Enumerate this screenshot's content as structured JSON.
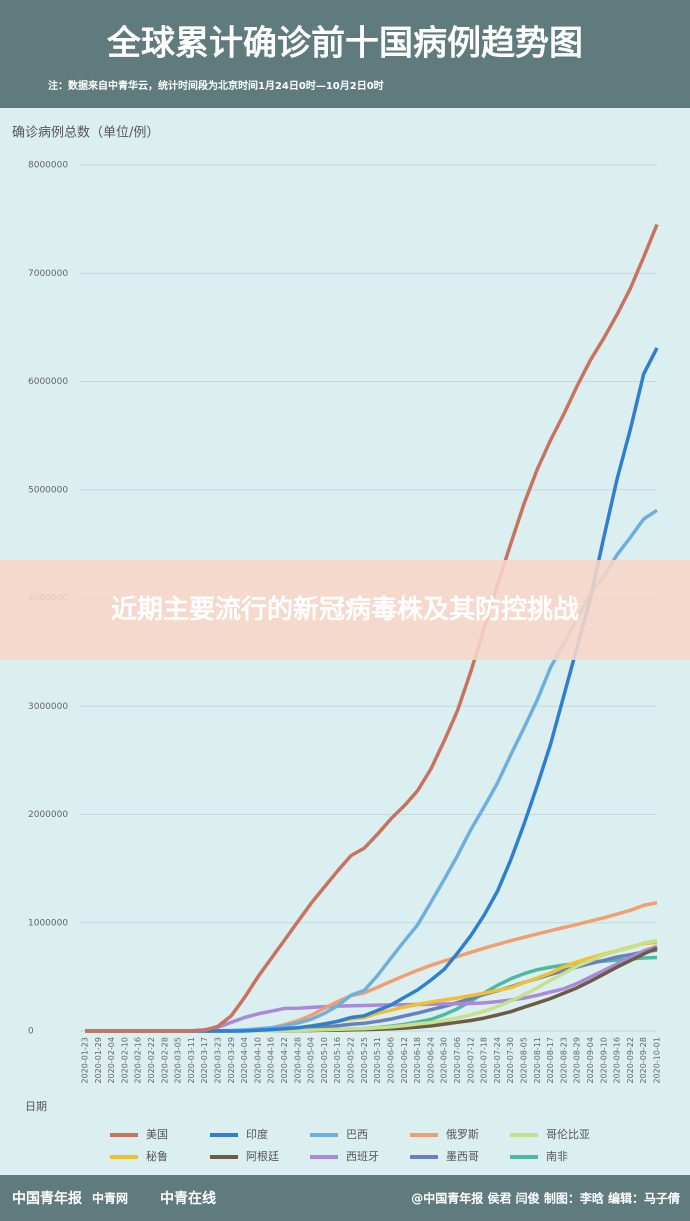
{
  "chart_data": {
    "type": "line",
    "title": "全球累计确诊前十国病例趋势图",
    "subtitle": "注：数据来自中青华云，统计时间段为北京时间1月24日0时—10月2日0时",
    "y_label": "确诊病例总数（单位/例）",
    "x_label": "日期",
    "ylim": [
      0,
      8000000
    ],
    "yticks": [
      0,
      1000000,
      2000000,
      3000000,
      4000000,
      5000000,
      6000000,
      7000000,
      8000000
    ],
    "grid": true,
    "categories": [
      "2020-01-23",
      "2020-01-29",
      "2020-02-04",
      "2020-02-10",
      "2020-02-16",
      "2020-02-22",
      "2020-02-28",
      "2020-03-05",
      "2020-03-11",
      "2020-03-17",
      "2020-03-23",
      "2020-03-29",
      "2020-04-04",
      "2020-04-10",
      "2020-04-16",
      "2020-04-22",
      "2020-04-28",
      "2020-05-04",
      "2020-05-10",
      "2020-05-16",
      "2020-05-22",
      "2020-05-25",
      "2020-05-31",
      "2020-06-06",
      "2020-06-12",
      "2020-06-18",
      "2020-06-24",
      "2020-06-30",
      "2020-07-06",
      "2020-07-12",
      "2020-07-18",
      "2020-07-24",
      "2020-07-30",
      "2020-08-05",
      "2020-08-11",
      "2020-08-17",
      "2020-08-23",
      "2020-08-29",
      "2020-09-04",
      "2020-09-10",
      "2020-09-16",
      "2020-09-22",
      "2020-09-28",
      "2020-10-01"
    ],
    "series": [
      {
        "name": "美国",
        "color": "#c8735e",
        "values": [
          0,
          0,
          0,
          0,
          0,
          0,
          0,
          200,
          1300,
          6400,
          43000,
          140000,
          310000,
          500000,
          670000,
          840000,
          1010000,
          1180000,
          1330000,
          1480000,
          1620000,
          1690000,
          1820000,
          1960000,
          2080000,
          2220000,
          2420000,
          2680000,
          2960000,
          3320000,
          3720000,
          4120000,
          4500000,
          4870000,
          5190000,
          5460000,
          5700000,
          5960000,
          6200000,
          6400000,
          6620000,
          6860000,
          7150000,
          7450000
        ]
      },
      {
        "name": "印度",
        "color": "#2f7fd0",
        "values": [
          0,
          0,
          0,
          0,
          0,
          0,
          0,
          0,
          0,
          0,
          0,
          0,
          0,
          7500,
          13000,
          20000,
          30000,
          45000,
          65000,
          90000,
          125000,
          140000,
          190000,
          240000,
          310000,
          380000,
          470000,
          570000,
          720000,
          880000,
          1070000,
          1290000,
          1580000,
          1910000,
          2270000,
          2650000,
          3100000,
          3550000,
          4000000,
          4560000,
          5100000,
          5560000,
          6070000,
          6310000
        ]
      },
      {
        "name": "巴西",
        "color": "#6db0e0",
        "values": [
          0,
          0,
          0,
          0,
          0,
          0,
          0,
          0,
          0,
          300,
          1900,
          4300,
          10000,
          19000,
          30000,
          46000,
          73000,
          108000,
          163000,
          234000,
          330000,
          375000,
          515000,
          673000,
          830000,
          980000,
          1190000,
          1400000,
          1620000,
          1860000,
          2070000,
          2290000,
          2550000,
          2800000,
          3060000,
          3360000,
          3580000,
          3810000,
          4040000,
          4200000,
          4400000,
          4560000,
          4730000,
          4810000
        ]
      },
      {
        "name": "俄罗斯",
        "color": "#f0a070",
        "values": [
          0,
          0,
          0,
          0,
          0,
          0,
          0,
          0,
          0,
          100,
          400,
          1500,
          4700,
          12000,
          27000,
          58000,
          94000,
          145000,
          210000,
          272000,
          326000,
          353000,
          405000,
          458000,
          511000,
          561000,
          607000,
          647000,
          687000,
          727000,
          765000,
          800000,
          834000,
          866000,
          897000,
          927000,
          956000,
          985000,
          1015000,
          1046000,
          1080000,
          1115000,
          1160000,
          1185000
        ]
      },
      {
        "name": "哥伦比亚",
        "color": "#c7e08a",
        "values": [
          0,
          0,
          0,
          0,
          0,
          0,
          0,
          0,
          0,
          0,
          200,
          700,
          1400,
          2200,
          3000,
          4500,
          6000,
          8600,
          11000,
          15000,
          19000,
          22000,
          30000,
          38000,
          50000,
          65000,
          78000,
          98000,
          120000,
          150000,
          182000,
          226000,
          276000,
          335000,
          398000,
          469000,
          533000,
          600000,
          650000,
          702000,
          737000,
          770000,
          813000,
          835000
        ]
      },
      {
        "name": "秘鲁",
        "color": "#f0c030",
        "values": [
          0,
          0,
          0,
          0,
          0,
          0,
          0,
          0,
          0,
          100,
          400,
          900,
          1700,
          5900,
          12500,
          19000,
          31000,
          48000,
          67000,
          88000,
          111000,
          124000,
          164000,
          192000,
          221000,
          245000,
          268000,
          286000,
          306000,
          327000,
          349000,
          375000,
          400000,
          447000,
          490000,
          536000,
          594000,
          639000,
          676000,
          710000,
          742000,
          776000,
          808000,
          818000
        ]
      },
      {
        "name": "阿根廷",
        "color": "#6e5a45",
        "values": [
          0,
          0,
          0,
          0,
          0,
          0,
          0,
          0,
          20,
          70,
          300,
          800,
          1500,
          1900,
          2400,
          3300,
          4300,
          5000,
          6300,
          7800,
          10600,
          12600,
          16800,
          21000,
          27000,
          36000,
          47000,
          64000,
          80000,
          97000,
          119000,
          148000,
          178000,
          220000,
          260000,
          300000,
          350000,
          400000,
          460000,
          525000,
          590000,
          650000,
          712000,
          765000
        ]
      },
      {
        "name": "西班牙",
        "color": "#a88ad8",
        "values": [
          0,
          0,
          0,
          0,
          0,
          0,
          30,
          260,
          2300,
          11800,
          35000,
          80000,
          125000,
          158000,
          183000,
          209000,
          210000,
          218000,
          224000,
          230000,
          234000,
          236000,
          239000,
          241000,
          243000,
          245000,
          247000,
          250000,
          252000,
          254000,
          260000,
          272000,
          286000,
          303000,
          330000,
          360000,
          390000,
          440000,
          500000,
          560000,
          620000,
          680000,
          740000,
          780000
        ]
      },
      {
        "name": "墨西哥",
        "color": "#6680c0",
        "values": [
          0,
          0,
          0,
          0,
          0,
          0,
          0,
          5,
          10,
          90,
          370,
          990,
          1900,
          3800,
          6300,
          10500,
          16800,
          24000,
          36000,
          49000,
          62000,
          71000,
          90000,
          110000,
          139000,
          165000,
          197000,
          227000,
          262000,
          300000,
          339000,
          371000,
          408000,
          449000,
          485000,
          522000,
          560000,
          592000,
          623000,
          652000,
          684000,
          705000,
          730000,
          748000
        ]
      },
      {
        "name": "南非",
        "color": "#4fb8a0",
        "values": [
          0,
          0,
          0,
          0,
          0,
          0,
          0,
          1,
          13,
          116,
          400,
          1280,
          1580,
          2000,
          2600,
          3600,
          5000,
          7200,
          10000,
          14000,
          19000,
          23000,
          32000,
          45000,
          62000,
          83000,
          107000,
          151000,
          206000,
          276000,
          351000,
          421000,
          482000,
          529000,
          566000,
          590000,
          609000,
          625000,
          636000,
          646000,
          655000,
          665000,
          674000,
          679000
        ]
      }
    ]
  },
  "banner": "近期主要流行的新冠病毒株及其防控挑战",
  "footer": {
    "logos": [
      "中国青年报",
      "中青网",
      "中青在线"
    ],
    "credits": "@中国青年报 侯君 闫俊 制图：李晗 编辑：马子倩"
  }
}
